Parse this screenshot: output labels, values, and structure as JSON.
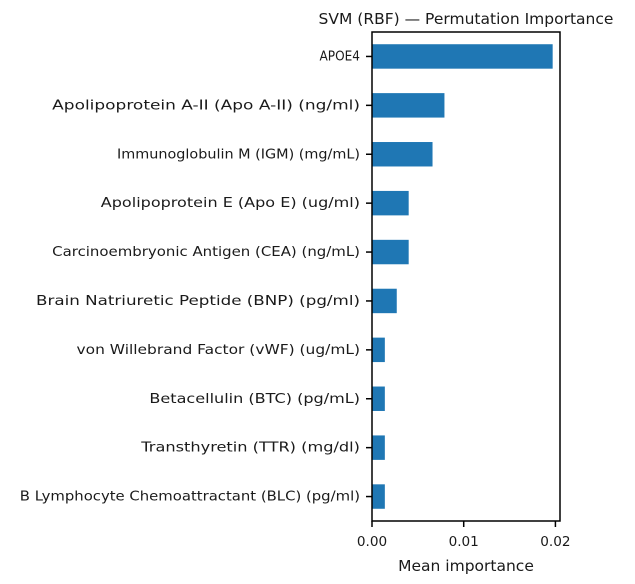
{
  "chart_data": {
    "type": "bar",
    "orientation": "horizontal",
    "title": "SVM (RBF) — Permutation Importance",
    "xlabel": "Mean importance",
    "ylabel": "",
    "xlim": [
      0,
      0.0205
    ],
    "x_ticks": [
      0.0,
      0.01,
      0.02
    ],
    "x_tick_labels": [
      "0.00",
      "0.01",
      "0.02"
    ],
    "grid": false,
    "bar_color": "#1f77b4",
    "categories": [
      "APOE4",
      "Apolipoprotein A-II (Apo A-II) (ng/ml)",
      "Immunoglobulin M (IGM) (mg/mL)",
      "Apolipoprotein E (Apo E) (ug/ml)",
      "Carcinoembryonic Antigen (CEA) (ng/mL)",
      "Brain Natriuretic Peptide  (BNP) (pg/ml)",
      "von Willebrand Factor (vWF) (ug/mL)",
      "Betacellulin (BTC) (pg/mL)",
      "Transthyretin (TTR) (mg/dl)",
      "B Lymphocyte Chemoattractant (BLC) (pg/ml)"
    ],
    "values": [
      0.0197,
      0.0079,
      0.0066,
      0.004,
      0.004,
      0.0027,
      0.0014,
      0.0014,
      0.0014,
      0.0014
    ]
  }
}
